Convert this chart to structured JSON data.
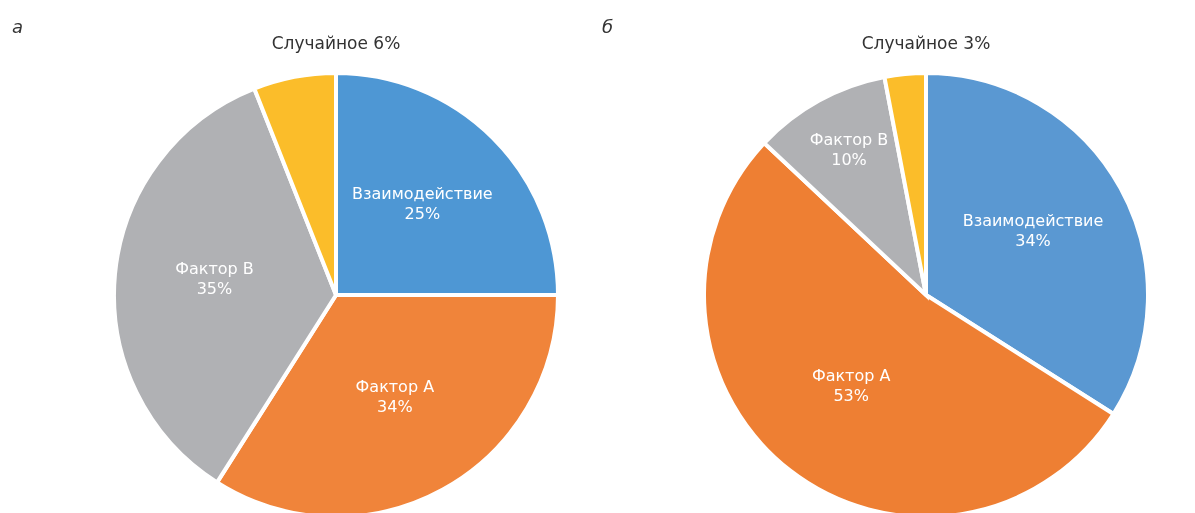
{
  "chart_data": [
    {
      "type": "pie",
      "title": "а",
      "categories": [
        "Взаимодействие",
        "Фактор А",
        "Фактор В",
        "Случайное"
      ],
      "values": [
        25,
        34,
        35,
        6
      ],
      "value_labels": [
        "25%",
        "34%",
        "35%",
        "6%"
      ],
      "colors": [
        "#4e97d4",
        "#f0843a",
        "#b0b1b4",
        "#fbbd2a"
      ]
    },
    {
      "type": "pie",
      "title": "б",
      "categories": [
        "Взаимодействие",
        "Фактор А",
        "Фактор В",
        "Случайное"
      ],
      "values": [
        34,
        53,
        10,
        3
      ],
      "value_labels": [
        "34%",
        "53%",
        "10%",
        "3%"
      ],
      "colors": [
        "#5a98d2",
        "#ee7f33",
        "#b0b1b4",
        "#fbbd2a"
      ]
    }
  ]
}
